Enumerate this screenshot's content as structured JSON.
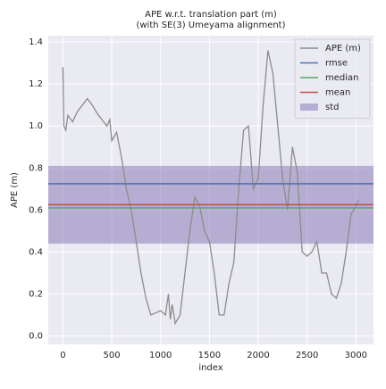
{
  "chart_data": {
    "type": "line",
    "title": "APE w.r.t. translation part (m)",
    "subtitle": "(with SE(3) Umeyama alignment)",
    "x_label": "index",
    "y_label": "APE (m)",
    "xlim": [
      -150,
      3180
    ],
    "ylim": [
      -0.04,
      1.43
    ],
    "xticks": [
      0,
      500,
      1000,
      1500,
      2000,
      2500,
      3000
    ],
    "yticks": [
      {
        "value": 0,
        "label": "0.0"
      },
      0.2,
      0.4,
      0.6,
      0.8,
      {
        "value": 1,
        "label": "1.0"
      },
      1.2,
      1.4
    ],
    "grid": true,
    "legend": "upper right",
    "series": [
      {
        "name": "APE (m)",
        "color": "#8c8c8c",
        "x": [
          0,
          10,
          30,
          50,
          100,
          150,
          200,
          250,
          300,
          350,
          400,
          450,
          480,
          500,
          550,
          600,
          650,
          700,
          750,
          800,
          850,
          900,
          950,
          1000,
          1050,
          1080,
          1100,
          1120,
          1150,
          1200,
          1250,
          1300,
          1350,
          1400,
          1450,
          1500,
          1550,
          1600,
          1650,
          1700,
          1750,
          1800,
          1850,
          1900,
          1950,
          2000,
          2050,
          2100,
          2150,
          2200,
          2250,
          2300,
          2350,
          2400,
          2450,
          2500,
          2550,
          2600,
          2650,
          2700,
          2750,
          2800,
          2850,
          2900,
          2950,
          3000,
          3030
        ],
        "values": [
          1.28,
          1.0,
          0.98,
          1.05,
          1.02,
          1.07,
          1.1,
          1.13,
          1.1,
          1.06,
          1.03,
          1.0,
          1.03,
          0.93,
          0.97,
          0.85,
          0.7,
          0.6,
          0.45,
          0.3,
          0.18,
          0.1,
          0.11,
          0.12,
          0.1,
          0.2,
          0.08,
          0.15,
          0.06,
          0.1,
          0.3,
          0.5,
          0.66,
          0.62,
          0.5,
          0.45,
          0.3,
          0.1,
          0.1,
          0.25,
          0.35,
          0.7,
          0.98,
          1.0,
          0.7,
          0.75,
          1.1,
          1.36,
          1.25,
          1.0,
          0.75,
          0.6,
          0.9,
          0.78,
          0.4,
          0.38,
          0.4,
          0.45,
          0.3,
          0.3,
          0.2,
          0.18,
          0.25,
          0.4,
          0.58,
          0.62,
          0.65
        ]
      }
    ],
    "stats": [
      {
        "name": "rmse",
        "color": "#4c72b0",
        "value": 0.725
      },
      {
        "name": "median",
        "color": "#55a868",
        "value": 0.61
      },
      {
        "name": "mean",
        "color": "#c44e52",
        "value": 0.625
      }
    ],
    "std": {
      "name": "std",
      "color": "#8172b2",
      "value": 0.185
    }
  }
}
